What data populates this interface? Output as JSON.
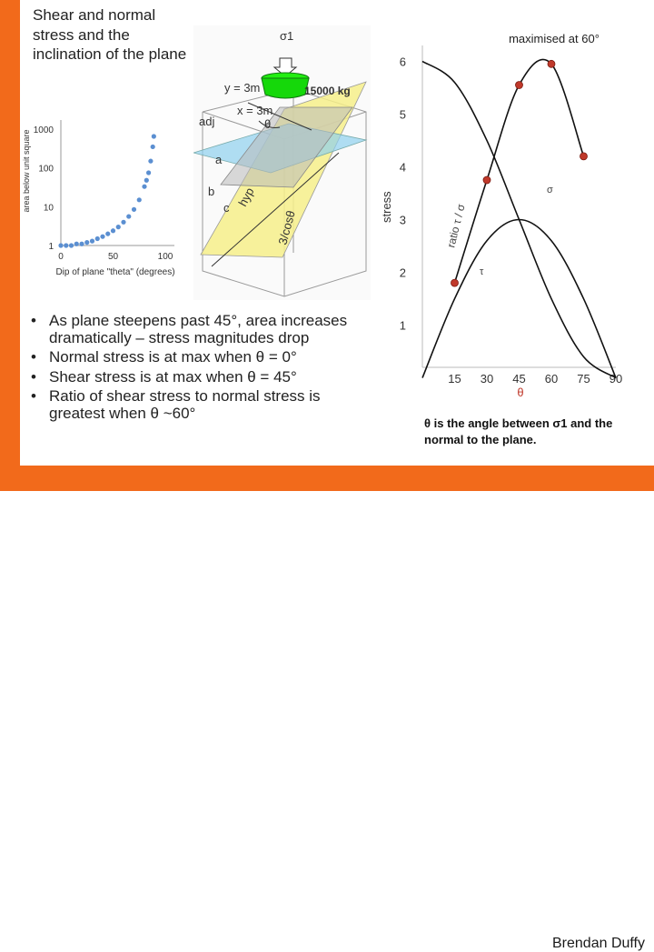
{
  "slide": {
    "title": "Shear and normal stress and the inclination of the plane",
    "footer": "Brendan Duffy",
    "colors": {
      "accent": "#f26a1b",
      "point": "#5b8fd1",
      "marker": "#c0392b"
    }
  },
  "scatter": {
    "ylabel": "area below unit square",
    "xlabel": "Dip of plane \"theta\" (degrees)",
    "y_ticks": [
      "1",
      "10",
      "100",
      "1000"
    ],
    "x_ticks": [
      "0",
      "50",
      "100"
    ]
  },
  "diagram": {
    "sigma_label": "σ1",
    "weight_label": "15000 kg",
    "y_label": "y = 3m",
    "x_label": "x = 3m",
    "theta_label": "θ",
    "adj_label": "adj",
    "a_label": "a",
    "b_label": "b",
    "c_label": "c",
    "hyp_label": "hyp",
    "cos_label": "3/cosθ"
  },
  "ratio_chart": {
    "title": "maximised at 60°",
    "ylabel": "stress",
    "xlabel": "θ",
    "y_ticks": [
      "1",
      "2",
      "3",
      "4",
      "5",
      "6"
    ],
    "x_ticks": [
      "15",
      "30",
      "45",
      "60",
      "75",
      "90"
    ],
    "ratio_label": "ratio τ / σ",
    "normal_label": "σ",
    "shear_label": "τ"
  },
  "bullets": [
    "As plane steepens past 45°, area increases dramatically – stress magnitudes drop",
    "Normal stress is at max when θ = 0°",
    "Shear stress is at max when θ = 45°",
    "Ratio of shear stress to normal stress is greatest when θ ~60°"
  ],
  "caption": "θ is the angle between σ1 and the normal to the plane.",
  "chart_data": [
    {
      "type": "scatter",
      "title": "",
      "xlabel": "Dip of plane \"theta\" (degrees)",
      "ylabel": "area below unit square",
      "yscale": "log",
      "xlim": [
        0,
        100
      ],
      "ylim": [
        1,
        1000
      ],
      "x": [
        0,
        5,
        10,
        15,
        20,
        25,
        30,
        35,
        40,
        45,
        50,
        55,
        60,
        65,
        70,
        75,
        80,
        82,
        84,
        86,
        88,
        89
      ],
      "y": [
        1.0,
        1.0,
        1.0,
        1.1,
        1.1,
        1.2,
        1.3,
        1.5,
        1.7,
        2.0,
        2.4,
        3.0,
        4.0,
        5.6,
        8.5,
        15,
        33,
        48,
        75,
        150,
        350,
        650
      ]
    },
    {
      "type": "line",
      "title": "maximised at 60°",
      "xlabel": "θ",
      "ylabel": "stress",
      "xlim": [
        0,
        90
      ],
      "ylim": [
        0.2,
        6.3
      ],
      "series": [
        {
          "name": "ratio τ / σ",
          "x": [
            15,
            30,
            45,
            60,
            75
          ],
          "y": [
            1.8,
            3.75,
            5.55,
            5.95,
            4.2
          ]
        },
        {
          "name": "σ",
          "x": [
            0,
            15,
            30,
            45,
            60,
            75,
            90
          ],
          "y": [
            6.0,
            5.6,
            4.5,
            3.0,
            1.5,
            0.4,
            0.0
          ]
        },
        {
          "name": "τ",
          "x": [
            0,
            15,
            30,
            45,
            60,
            75,
            90
          ],
          "y": [
            0.0,
            1.5,
            2.6,
            3.0,
            2.6,
            1.5,
            0.0
          ]
        }
      ]
    }
  ]
}
